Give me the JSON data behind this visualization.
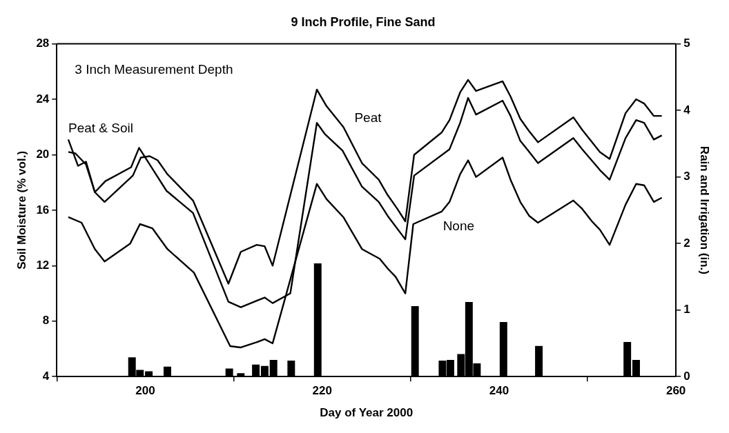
{
  "chart_data": {
    "type": "line",
    "title": "9 Inch Profile, Fine Sand",
    "xlabel": "Day of Year 2000",
    "ylabel": "Soil Moisture (% vol.)",
    "y2label": "Rain and Irrigation (in.)",
    "annotations": [
      "3 Inch Measurement Depth"
    ],
    "xlim": [
      190,
      260
    ],
    "xticks": [
      200,
      220,
      240,
      260
    ],
    "ylim": [
      4,
      28
    ],
    "yticks": [
      4,
      8,
      12,
      16,
      20,
      24,
      28
    ],
    "y2lim": [
      0,
      5
    ],
    "y2ticks": [
      0,
      1,
      2,
      3,
      4,
      5
    ],
    "grid": false,
    "legend": false,
    "marker": "none",
    "line_style": "solid",
    "series": [
      {
        "name": "Peat",
        "color": "#000000",
        "x": [
          191.3,
          192.1,
          193.3,
          194.3,
          195.4,
          198.6,
          199.5,
          200.5,
          201.4,
          202.5,
          205.4,
          209.4,
          210.8,
          212.6,
          213.5,
          214.4,
          219.4,
          220.5,
          222.4,
          224.5,
          226.4,
          227.4,
          228.5,
          229.4,
          230.4,
          233.5,
          234.4,
          235.6,
          236.5,
          237.4,
          240.4,
          241.3,
          242.4,
          243.4,
          244.4,
          248.4,
          249.4,
          251.4,
          252.5,
          254.3,
          255.5,
          256.4,
          257.5,
          258.4
        ],
        "values": [
          20.2,
          20.1,
          19.3,
          17.3,
          16.6,
          18.5,
          19.8,
          19.9,
          19.6,
          18.6,
          16.7,
          10.7,
          13.0,
          13.5,
          13.4,
          12.0,
          24.7,
          23.5,
          22.0,
          19.4,
          18.2,
          17.1,
          16.1,
          15.2,
          20.0,
          21.6,
          22.5,
          24.5,
          25.4,
          24.6,
          25.3,
          24.2,
          22.6,
          21.7,
          20.9,
          22.7,
          21.8,
          20.2,
          19.7,
          23.0,
          24.0,
          23.7,
          22.8,
          22.8
        ]
      },
      {
        "name": "Peat & Soil",
        "color": "#000000",
        "x": [
          191.3,
          192.4,
          193.3,
          194.3,
          195.5,
          198.4,
          199.3,
          201.2,
          202.4,
          205.4,
          209.4,
          210.8,
          212.7,
          213.5,
          214.4,
          216.4,
          219.4,
          220.3,
          222.3,
          224.5,
          226.4,
          227.4,
          229.4,
          230.4,
          234.4,
          235.6,
          236.5,
          237.4,
          240.4,
          241.3,
          242.4,
          243.3,
          244.4,
          248.4,
          249.4,
          251.4,
          252.5,
          254.3,
          255.5,
          256.4,
          257.5,
          258.4
        ],
        "values": [
          21.1,
          19.2,
          19.5,
          17.3,
          18.1,
          19.1,
          20.5,
          18.6,
          17.4,
          15.8,
          9.4,
          9.0,
          9.5,
          9.7,
          9.3,
          10.0,
          22.3,
          21.5,
          20.3,
          17.7,
          16.6,
          15.6,
          13.9,
          18.5,
          20.4,
          22.3,
          24.1,
          22.9,
          23.9,
          22.8,
          21.0,
          20.3,
          19.4,
          21.2,
          20.4,
          18.9,
          18.2,
          21.2,
          22.5,
          22.3,
          21.1,
          21.4
        ]
      },
      {
        "name": "None",
        "color": "#000000",
        "x": [
          191.3,
          192.8,
          194.3,
          195.4,
          198.3,
          199.4,
          200.8,
          202.5,
          205.5,
          209.6,
          210.8,
          212.7,
          213.5,
          214.4,
          219.4,
          220.5,
          222.4,
          224.5,
          226.5,
          227.4,
          228.3,
          229.4,
          230.3,
          233.5,
          234.4,
          235.6,
          236.5,
          237.4,
          240.4,
          241.3,
          242.4,
          243.4,
          244.4,
          248.4,
          249.4,
          250.5,
          251.4,
          252.5,
          254.3,
          255.5,
          256.4,
          257.5,
          258.4
        ],
        "values": [
          15.5,
          15.1,
          13.2,
          12.3,
          13.6,
          15.0,
          14.7,
          13.2,
          11.5,
          6.2,
          6.1,
          6.5,
          6.7,
          6.4,
          17.9,
          16.8,
          15.5,
          13.2,
          12.5,
          11.8,
          11.2,
          10.0,
          15.0,
          15.9,
          16.6,
          18.6,
          19.6,
          18.4,
          19.8,
          18.2,
          16.6,
          15.6,
          15.1,
          16.7,
          16.1,
          15.2,
          14.6,
          13.5,
          16.4,
          17.9,
          17.8,
          16.6,
          16.9
        ]
      },
      {
        "type": "bar",
        "axis": "y2",
        "color": "#000000",
        "x": [
          192.5,
          198.5,
          199.4,
          200.4,
          202.5,
          209.5,
          210.8,
          212.5,
          213.5,
          214.5,
          216.5,
          219.5,
          230.5,
          233.6,
          234.5,
          235.7,
          236.6,
          237.5,
          240.5,
          244.5,
          254.5,
          255.5,
          256.5,
          258.5
        ],
        "values": [
          0.01,
          0.29,
          0.1,
          0.08,
          0.15,
          0.12,
          0.05,
          0.18,
          0.16,
          0.25,
          0.24,
          1.7,
          1.06,
          0.24,
          0.25,
          0.34,
          1.12,
          0.2,
          0.82,
          0.46,
          0.52,
          0.25,
          0.01,
          0.01
        ]
      }
    ]
  }
}
